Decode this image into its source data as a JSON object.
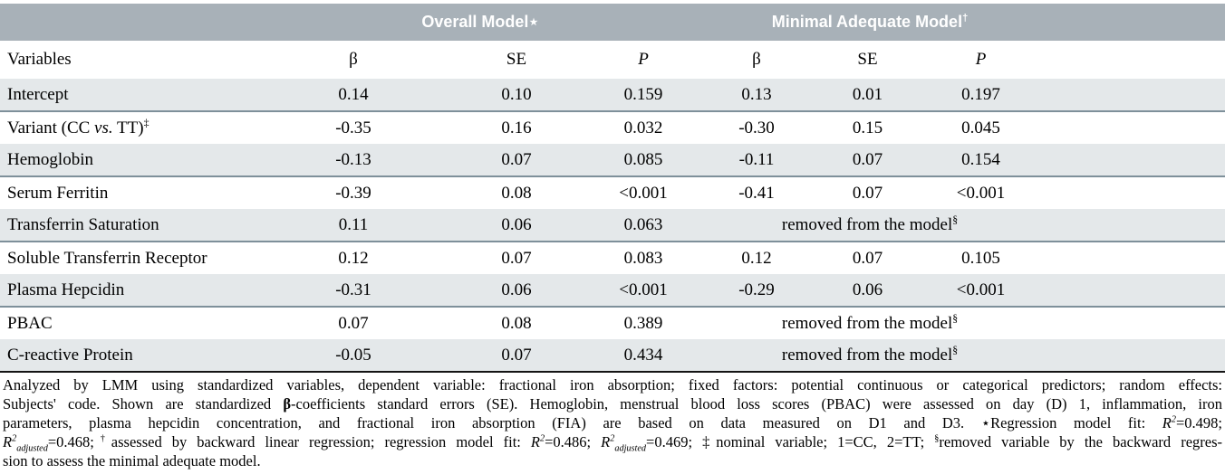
{
  "colors": {
    "header_band": "#a8b1b8",
    "stripe": "#e4e8ea",
    "row_divider": "#7e909a",
    "table_bottom_border": "#141414",
    "header_text": "#ffffff",
    "body_text": "#000000"
  },
  "table": {
    "group_headers": [
      {
        "segments": [
          {
            "t": "Overall Model"
          },
          {
            "t": "⋆"
          }
        ]
      },
      {
        "segments": [
          {
            "t": "Minimal Adequate Model"
          },
          {
            "t": "†",
            "sup": true
          }
        ]
      }
    ],
    "column_headers": [
      {
        "segments": [
          {
            "t": "Variables"
          }
        ]
      },
      {
        "segments": [
          {
            "t": "β"
          }
        ]
      },
      {
        "segments": [
          {
            "t": "SE"
          }
        ]
      },
      {
        "segments": [
          {
            "t": "P",
            "i": true
          }
        ]
      },
      {
        "segments": [
          {
            "t": "β"
          }
        ]
      },
      {
        "segments": [
          {
            "t": "SE"
          }
        ]
      },
      {
        "segments": [
          {
            "t": "P",
            "i": true
          }
        ]
      }
    ],
    "removed_label": {
      "segments": [
        {
          "t": "removed from the model"
        },
        {
          "t": "§",
          "sup": true
        }
      ]
    },
    "rows": [
      {
        "name": "intercept",
        "variable": {
          "segments": [
            {
              "t": "Intercept"
            }
          ]
        },
        "overall": [
          "0.14",
          "0.10",
          "0.159"
        ],
        "minimal": [
          "0.13",
          "0.01",
          "0.197"
        ]
      },
      {
        "name": "variant",
        "variable": {
          "segments": [
            {
              "t": "Variant (CC "
            },
            {
              "t": "vs.",
              "i": true
            },
            {
              "t": " TT)"
            },
            {
              "t": "‡",
              "sup": true
            }
          ]
        },
        "overall": [
          "-0.35",
          "0.16",
          "0.032"
        ],
        "minimal": [
          "-0.30",
          "0.15",
          "0.045"
        ]
      },
      {
        "name": "hemoglobin",
        "variable": {
          "segments": [
            {
              "t": "Hemoglobin"
            }
          ]
        },
        "overall": [
          "-0.13",
          "0.07",
          "0.085"
        ],
        "minimal": [
          "-0.11",
          "0.07",
          "0.154"
        ]
      },
      {
        "name": "serum-ferritin",
        "variable": {
          "segments": [
            {
              "t": "Serum Ferritin"
            }
          ]
        },
        "overall": [
          "-0.39",
          "0.08",
          "<0.001"
        ],
        "minimal": [
          "-0.41",
          "0.07",
          "<0.001"
        ]
      },
      {
        "name": "transferrin-saturation",
        "variable": {
          "segments": [
            {
              "t": "Transferrin Saturation"
            }
          ]
        },
        "overall": [
          "0.11",
          "0.06",
          "0.063"
        ],
        "removed": true
      },
      {
        "name": "soluble-transferrin-receptor",
        "variable": {
          "segments": [
            {
              "t": "Soluble Transferrin Receptor"
            }
          ]
        },
        "overall": [
          "0.12",
          "0.07",
          "0.083"
        ],
        "minimal": [
          "0.12",
          "0.07",
          "0.105"
        ]
      },
      {
        "name": "plasma-hepcidin",
        "variable": {
          "segments": [
            {
              "t": "Plasma Hepcidin"
            }
          ]
        },
        "overall": [
          "-0.31",
          "0.06",
          "<0.001"
        ],
        "minimal": [
          "-0.29",
          "0.06",
          "<0.001"
        ]
      },
      {
        "name": "pbac",
        "variable": {
          "segments": [
            {
              "t": "PBAC"
            }
          ]
        },
        "overall": [
          "0.07",
          "0.08",
          "0.389"
        ],
        "removed": true
      },
      {
        "name": "c-reactive-protein",
        "variable": {
          "segments": [
            {
              "t": "C-reactive Protein"
            }
          ]
        },
        "overall": [
          "-0.05",
          "0.07",
          "0.434"
        ],
        "removed": true
      }
    ]
  },
  "footnote": {
    "lines": [
      {
        "justify": true,
        "segments": [
          {
            "t": "Analyzed by LMM using standardized variables, dependent variable: fractional iron absorption; fixed factors: potential continuous or categorical predictors; random effects:"
          }
        ]
      },
      {
        "justify": true,
        "segments": [
          {
            "t": "Subjects' code. Shown are standardized "
          },
          {
            "t": "β",
            "b": true
          },
          {
            "t": "-coefficients standard errors (SE). Hemoglobin, menstrual blood loss scores (PBAC) were assessed on day (D) 1, inflammation, iron"
          }
        ]
      },
      {
        "justify": true,
        "segments": [
          {
            "t": "parameters, plasma hepcidin concentration, and fractional iron absorption (FIA) are based on data measured on D1 and D3. ⋆Regression model fit: "
          },
          {
            "t": "R",
            "i": true
          },
          {
            "t": "2",
            "sup": true,
            "i": true
          },
          {
            "t": "=0.498;"
          }
        ]
      },
      {
        "justify": true,
        "segments": [
          {
            "t": "R",
            "i": true
          },
          {
            "t": "2",
            "sup": true,
            "i": true
          },
          {
            "t": "adjusted",
            "sub": true,
            "i": true
          },
          {
            "t": "=0.468;"
          },
          {
            "t": "†",
            "sup": true
          },
          {
            "t": "assessed by backward linear regression; regression model fit: "
          },
          {
            "t": "R",
            "i": true
          },
          {
            "t": "2",
            "sup": true,
            "i": true
          },
          {
            "t": "=0.486; "
          },
          {
            "t": "R",
            "i": true
          },
          {
            "t": "2",
            "sup": true,
            "i": true
          },
          {
            "t": "adjusted",
            "sub": true,
            "i": true
          },
          {
            "t": "=0.469; ‡nominal variable; 1=CC, 2=TT; "
          },
          {
            "t": "§",
            "sup": true
          },
          {
            "t": "removed variable by the backward regres-"
          }
        ]
      },
      {
        "justify": false,
        "segments": [
          {
            "t": "sion to assess the minimal adequate model."
          }
        ]
      }
    ]
  }
}
